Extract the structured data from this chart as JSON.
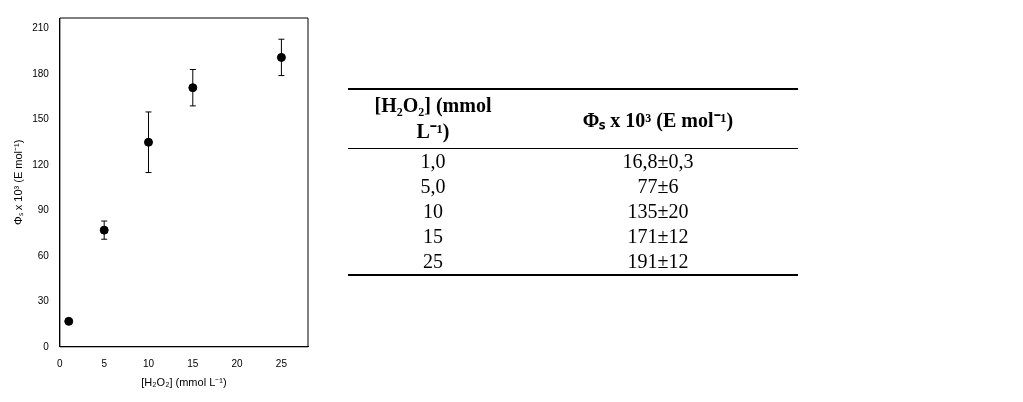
{
  "chart_data": [
    {
      "type": "scatter",
      "xlabel": "[H₂O₂] (mmol L⁻¹)",
      "ylabel": "Φₛ x 10³ (E mol⁻¹)",
      "x": [
        1,
        5,
        10,
        15,
        25
      ],
      "values": [
        16.8,
        77,
        135,
        171,
        191
      ],
      "errors": [
        0.3,
        6,
        20,
        12,
        12
      ],
      "color": "#000000",
      "marker": "circle",
      "xlim": [
        0,
        28
      ],
      "ylim": [
        0,
        217
      ],
      "xticks": [
        0,
        5,
        10,
        15,
        20,
        25
      ],
      "yticks": [
        0,
        30,
        60,
        90,
        120,
        150,
        180,
        210
      ],
      "grid": false,
      "legend": false
    },
    {
      "type": "other",
      "xlabel": "[H₂O₂] (mmol L⁻¹)",
      "ylabel": "Φₛ x 10³ (E mol⁻¹)",
      "categories": [
        "1,0",
        "5,0",
        "10",
        "15",
        "25"
      ],
      "value_labels": [
        "16,8±0,3",
        "77±6",
        "135±20",
        "171±12",
        "191±12"
      ]
    }
  ]
}
